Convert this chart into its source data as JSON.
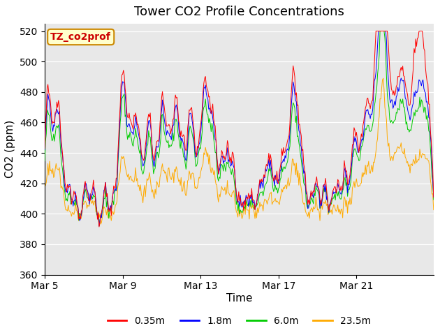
{
  "title": "Tower CO2 Profile Concentrations",
  "xlabel": "Time",
  "ylabel": "CO2 (ppm)",
  "ylim": [
    360,
    525
  ],
  "yticks": [
    360,
    380,
    400,
    420,
    440,
    460,
    480,
    500,
    520
  ],
  "xtick_labels": [
    "Mar 5",
    "Mar 9",
    "Mar 13",
    "Mar 17",
    "Mar 21"
  ],
  "xtick_positions": [
    0,
    96,
    192,
    288,
    384
  ],
  "total_points": 480,
  "legend_labels": [
    "0.35m",
    "1.8m",
    "6.0m",
    "23.5m"
  ],
  "line_colors": [
    "#ff0000",
    "#0000ff",
    "#00cc00",
    "#ffaa00"
  ],
  "bg_color": "#e8e8e8",
  "fig_bg_color": "#ffffff",
  "annotation_text": "TZ_co2prof",
  "annotation_bg": "#ffffcc",
  "annotation_border": "#cc8800",
  "annotation_text_color": "#cc0000",
  "title_fontsize": 13,
  "axis_label_fontsize": 11,
  "tick_label_fontsize": 10,
  "legend_fontsize": 10,
  "spike_positions": [
    [
      3,
      75,
      68,
      60,
      25
    ],
    [
      8,
      45,
      42,
      35,
      20
    ],
    [
      14,
      50,
      47,
      40,
      22
    ],
    [
      18,
      42,
      40,
      33,
      18
    ],
    [
      22,
      28,
      25,
      20,
      12
    ],
    [
      30,
      30,
      28,
      22,
      12
    ],
    [
      38,
      22,
      20,
      16,
      10
    ],
    [
      50,
      25,
      23,
      18,
      10
    ],
    [
      60,
      22,
      20,
      16,
      9
    ],
    [
      75,
      28,
      26,
      21,
      11
    ],
    [
      85,
      27,
      24,
      19,
      10
    ],
    [
      93,
      60,
      55,
      48,
      27
    ],
    [
      98,
      78,
      72,
      64,
      30
    ],
    [
      105,
      58,
      52,
      45,
      22
    ],
    [
      112,
      62,
      57,
      50,
      24
    ],
    [
      118,
      45,
      42,
      36,
      18
    ],
    [
      125,
      40,
      37,
      31,
      16
    ],
    [
      130,
      65,
      60,
      52,
      28
    ],
    [
      138,
      48,
      44,
      38,
      20
    ],
    [
      145,
      78,
      70,
      60,
      30
    ],
    [
      152,
      50,
      46,
      40,
      22
    ],
    [
      158,
      42,
      39,
      33,
      18
    ],
    [
      163,
      70,
      63,
      55,
      27
    ],
    [
      170,
      58,
      53,
      46,
      24
    ],
    [
      178,
      65,
      60,
      52,
      28
    ],
    [
      183,
      50,
      46,
      40,
      22
    ],
    [
      190,
      45,
      41,
      35,
      20
    ],
    [
      196,
      63,
      58,
      50,
      27
    ],
    [
      200,
      48,
      44,
      38,
      22
    ],
    [
      205,
      52,
      48,
      42,
      24
    ],
    [
      210,
      47,
      43,
      37,
      21
    ],
    [
      218,
      45,
      42,
      36,
      20
    ],
    [
      225,
      50,
      46,
      40,
      23
    ],
    [
      232,
      42,
      38,
      32,
      18
    ],
    [
      240,
      15,
      12,
      8,
      5
    ],
    [
      248,
      12,
      10,
      7,
      4
    ],
    [
      255,
      18,
      15,
      11,
      6
    ],
    [
      265,
      30,
      27,
      22,
      12
    ],
    [
      272,
      35,
      32,
      26,
      14
    ],
    [
      278,
      42,
      38,
      32,
      18
    ],
    [
      285,
      25,
      22,
      18,
      10
    ],
    [
      292,
      35,
      32,
      26,
      14
    ],
    [
      298,
      38,
      34,
      28,
      16
    ],
    [
      305,
      80,
      73,
      62,
      30
    ],
    [
      310,
      55,
      50,
      43,
      22
    ],
    [
      315,
      45,
      40,
      34,
      18
    ],
    [
      320,
      28,
      25,
      20,
      11
    ],
    [
      328,
      22,
      20,
      16,
      9
    ],
    [
      335,
      28,
      25,
      20,
      11
    ],
    [
      345,
      25,
      22,
      18,
      10
    ],
    [
      355,
      22,
      20,
      16,
      9
    ],
    [
      362,
      30,
      27,
      22,
      12
    ],
    [
      370,
      42,
      38,
      32,
      18
    ],
    [
      378,
      35,
      32,
      26,
      14
    ],
    [
      383,
      52,
      47,
      40,
      22
    ],
    [
      390,
      48,
      43,
      37,
      21
    ],
    [
      396,
      55,
      50,
      43,
      24
    ],
    [
      400,
      42,
      38,
      32,
      18
    ],
    [
      405,
      55,
      50,
      43,
      24
    ],
    [
      409,
      65,
      58,
      50,
      27
    ],
    [
      413,
      130,
      60,
      45,
      30
    ],
    [
      415,
      115,
      62,
      47,
      32
    ],
    [
      417,
      80,
      65,
      55,
      35
    ],
    [
      420,
      92,
      68,
      55,
      38
    ],
    [
      425,
      68,
      58,
      48,
      30
    ],
    [
      430,
      55,
      50,
      43,
      28
    ],
    [
      435,
      62,
      57,
      48,
      30
    ],
    [
      440,
      72,
      65,
      55,
      32
    ],
    [
      445,
      60,
      55,
      46,
      28
    ],
    [
      450,
      48,
      43,
      37,
      22
    ],
    [
      455,
      80,
      60,
      52,
      30
    ],
    [
      460,
      88,
      65,
      55,
      32
    ],
    [
      465,
      95,
      70,
      60,
      35
    ],
    [
      470,
      68,
      58,
      50,
      30
    ],
    [
      475,
      55,
      50,
      43,
      28
    ]
  ]
}
